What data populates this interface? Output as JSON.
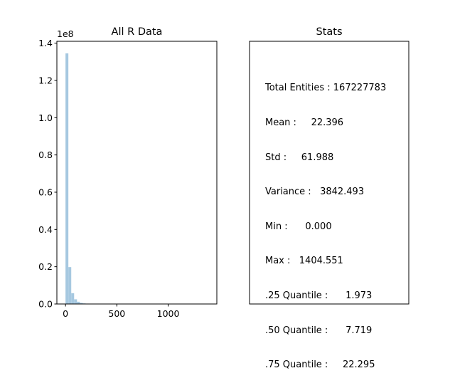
{
  "chart_data": [
    {
      "type": "bar",
      "title": "All R Data",
      "y_offset_label": "1e8",
      "x_ticks": [
        0,
        500,
        1000
      ],
      "x_tick_labels": [
        "0",
        "500",
        "1000"
      ],
      "y_ticks": [
        0.0,
        0.2,
        0.4,
        0.6,
        0.8,
        1.0,
        1.2,
        1.4
      ],
      "y_tick_labels": [
        "0.0",
        "0.2",
        "0.4",
        "0.6",
        "0.8",
        "1.0",
        "1.2",
        "1.4"
      ],
      "xlim": [
        -84,
        1474
      ],
      "ylim": [
        0,
        1.41
      ],
      "bins": [
        {
          "x0": 0,
          "x1": 28,
          "value": 1.345
        },
        {
          "x0": 28,
          "x1": 56,
          "value": 0.198
        },
        {
          "x0": 56,
          "x1": 84,
          "value": 0.058
        },
        {
          "x0": 84,
          "x1": 112,
          "value": 0.025
        },
        {
          "x0": 112,
          "x1": 140,
          "value": 0.012
        },
        {
          "x0": 140,
          "x1": 168,
          "value": 0.006
        },
        {
          "x0": 168,
          "x1": 196,
          "value": 0.003
        },
        {
          "x0": 196,
          "x1": 224,
          "value": 0.002
        },
        {
          "x0": 224,
          "x1": 252,
          "value": 0.001
        }
      ],
      "bar_color": "#a6c8e0",
      "grid": false,
      "legend": "none"
    },
    {
      "type": "table",
      "title": "Stats",
      "lines": [
        "Total Entities : 167227783",
        "Mean :     22.396",
        "Std :     61.988",
        "Variance :   3842.493",
        "Min :      0.000",
        "Max :   1404.551",
        ".25 Quantile :      1.973",
        ".50 Quantile :      7.719",
        ".75 Quantile :     22.295"
      ]
    }
  ]
}
